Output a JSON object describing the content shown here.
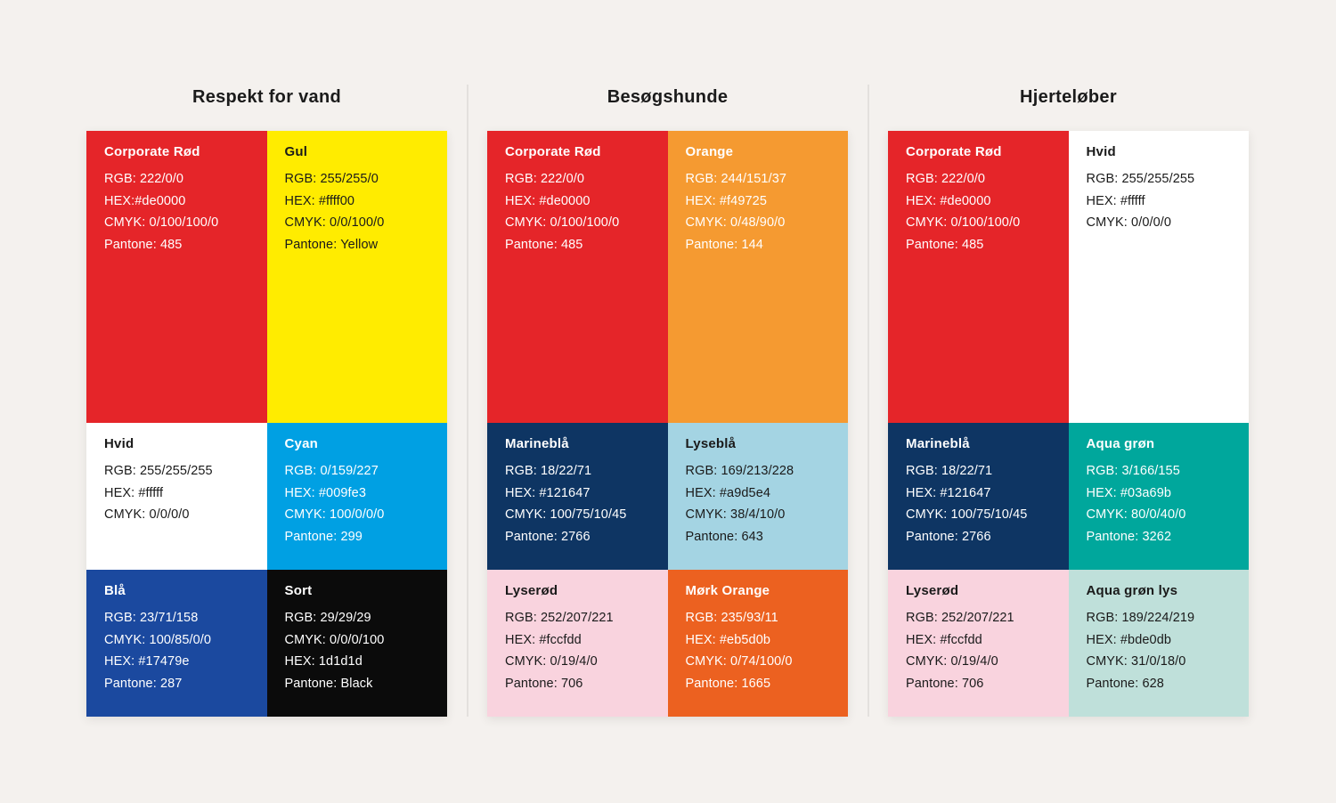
{
  "page": {
    "background_color": "#f4f1ee",
    "divider_color": "#e3e0dd",
    "title_color": "#1b1b1b"
  },
  "sections": [
    {
      "title": "Respekt for vand",
      "swatches": [
        {
          "name": "Corporate Rød",
          "bg": "#e52529",
          "fg": "#ffffff",
          "lines": [
            "RGB: 222/0/0",
            "HEX:#de0000",
            "CMYK: 0/100/100/0",
            "Pantone: 485"
          ]
        },
        {
          "name": "Gul",
          "bg": "#ffec00",
          "fg": "#1a1a1a",
          "lines": [
            "RGB: 255/255/0",
            "HEX: #ffff00",
            "CMYK: 0/0/100/0",
            "Pantone: Yellow"
          ]
        },
        {
          "name": "Hvid",
          "bg": "#ffffff",
          "fg": "#1a1a1a",
          "lines": [
            "RGB: 255/255/255",
            "HEX: #fffff",
            "CMYK: 0/0/0/0"
          ]
        },
        {
          "name": "Cyan",
          "bg": "#00a0e3",
          "fg": "#ffffff",
          "lines": [
            "RGB: 0/159/227",
            "HEX: #009fe3",
            "CMYK: 100/0/0/0",
            "Pantone: 299"
          ]
        },
        {
          "name": "Blå",
          "bg": "#1b499f",
          "fg": "#ffffff",
          "lines": [
            "RGB: 23/71/158",
            "CMYK: 100/85/0/0",
            "HEX: #17479e",
            "Pantone: 287"
          ]
        },
        {
          "name": "Sort",
          "bg": "#0b0b0b",
          "fg": "#ffffff",
          "lines": [
            "RGB: 29/29/29",
            "CMYK: 0/0/0/100",
            "HEX: 1d1d1d",
            "Pantone: Black"
          ]
        }
      ]
    },
    {
      "title": "Besøgshunde",
      "swatches": [
        {
          "name": "Corporate Rød",
          "bg": "#e52529",
          "fg": "#ffffff",
          "lines": [
            "RGB: 222/0/0",
            "HEX: #de0000",
            "CMYK: 0/100/100/0",
            "Pantone: 485"
          ]
        },
        {
          "name": "Orange",
          "bg": "#f59a31",
          "fg": "#ffffff",
          "lines": [
            "RGB: 244/151/37",
            "HEX: #f49725",
            "CMYK: 0/48/90/0",
            "Pantone: 144"
          ]
        },
        {
          "name": "Marineblå",
          "bg": "#0e3563",
          "fg": "#ffffff",
          "lines": [
            "RGB: 18/22/71",
            "HEX: #121647",
            "CMYK: 100/75/10/45",
            "Pantone: 2766"
          ]
        },
        {
          "name": "Lyseblå",
          "bg": "#a4d4e3",
          "fg": "#1a1a1a",
          "lines": [
            "RGB: 169/213/228",
            "HEX: #a9d5e4",
            "CMYK: 38/4/10/0",
            "Pantone: 643"
          ]
        },
        {
          "name": "Lyserød",
          "bg": "#f9d3de",
          "fg": "#1a1a1a",
          "lines": [
            "RGB: 252/207/221",
            "HEX: #fccfdd",
            "CMYK: 0/19/4/0",
            "Pantone: 706"
          ]
        },
        {
          "name": "Mørk Orange",
          "bg": "#ec6120",
          "fg": "#ffffff",
          "lines": [
            "RGB: 235/93/11",
            "HEX: #eb5d0b",
            "CMYK: 0/74/100/0",
            "Pantone: 1665"
          ]
        }
      ]
    },
    {
      "title": "Hjerteløber",
      "swatches": [
        {
          "name": "Corporate Rød",
          "bg": "#e52529",
          "fg": "#ffffff",
          "lines": [
            "RGB: 222/0/0",
            "HEX: #de0000",
            "CMYK: 0/100/100/0",
            "Pantone: 485"
          ]
        },
        {
          "name": "Hvid",
          "bg": "#ffffff",
          "fg": "#1a1a1a",
          "lines": [
            "RGB: 255/255/255",
            "HEX: #fffff",
            "CMYK: 0/0/0/0"
          ]
        },
        {
          "name": "Marineblå",
          "bg": "#0e3563",
          "fg": "#ffffff",
          "lines": [
            "RGB: 18/22/71",
            "HEX: #121647",
            "CMYK: 100/75/10/45",
            "Pantone: 2766"
          ]
        },
        {
          "name": "Aqua grøn",
          "bg": "#00a79c",
          "fg": "#ffffff",
          "lines": [
            "RGB: 3/166/155",
            "HEX: #03a69b",
            "CMYK: 80/0/40/0",
            "Pantone: 3262"
          ]
        },
        {
          "name": "Lyserød",
          "bg": "#f9d3de",
          "fg": "#1a1a1a",
          "lines": [
            "RGB: 252/207/221",
            "HEX: #fccfdd",
            "CMYK: 0/19/4/0",
            "Pantone: 706"
          ]
        },
        {
          "name": "Aqua grøn lys",
          "bg": "#bfe0da",
          "fg": "#1a1a1a",
          "lines": [
            "RGB: 189/224/219",
            "HEX: #bde0db",
            "CMYK: 31/0/18/0",
            "Pantone: 628"
          ]
        }
      ]
    }
  ]
}
